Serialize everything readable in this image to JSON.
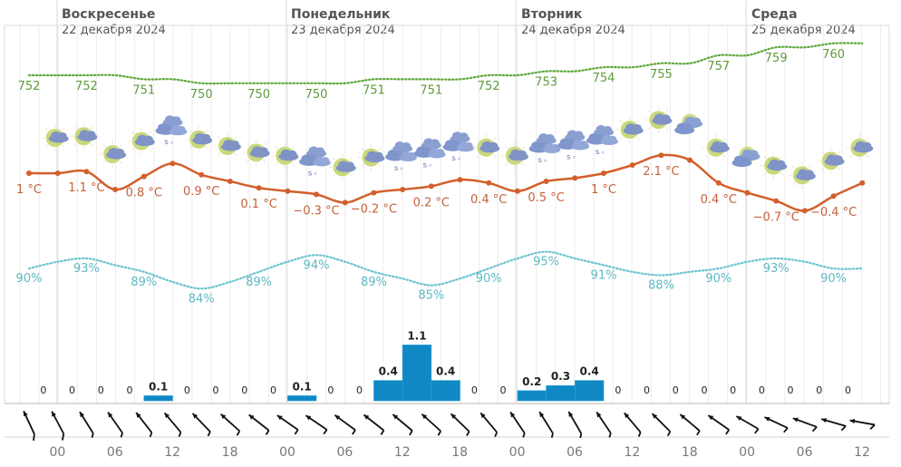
{
  "days": [
    {
      "name": "Воскресенье",
      "date": "22 декабря 2024"
    },
    {
      "name": "Понедельник",
      "date": "23 декабря 2024"
    },
    {
      "name": "Вторник",
      "date": "24 декабря 2024"
    },
    {
      "name": "Среда",
      "date": "25 декабря 2024"
    }
  ],
  "time_labels": [
    "00",
    "06",
    "12",
    "18",
    "00",
    "06",
    "12",
    "18",
    "00",
    "06",
    "12",
    "18",
    "00",
    "06",
    "12"
  ],
  "colors": {
    "temperature": "#d35f2b",
    "pressure": "#5ea83c",
    "humidity": "#6cc4cf",
    "precipitation": "#1088c4"
  },
  "chart_data": {
    "type": "line",
    "x_step_hours": 3,
    "temperature": {
      "unit": "°C",
      "values": [
        1,
        1,
        1.1,
        0,
        0.8,
        1.6,
        0.9,
        0.5,
        0.1,
        -0.1,
        -0.3,
        -0.8,
        -0.2,
        0,
        0.2,
        0.6,
        0.4,
        -0.1,
        0.5,
        0.7,
        1,
        1.5,
        2.1,
        1.8,
        0.4,
        -0.2,
        -0.7,
        -1.3,
        -0.4,
        0.4
      ],
      "labels": [
        "1 °C",
        "1.1 °C",
        "0.8 °C",
        "0.9 °C",
        "0.1 °C",
        "−0.3 °C",
        "−0.2 °C",
        "0.2 °C",
        "0.4 °C",
        "0.5 °C",
        "1 °C",
        "2.1 °C",
        "0.4 °C",
        "−0.7 °C",
        "−0.4 °C"
      ]
    },
    "pressure": {
      "values": [
        752,
        752,
        752,
        752,
        751,
        751,
        750,
        750,
        750,
        750,
        750,
        750,
        751,
        751,
        751,
        751,
        752,
        752,
        753,
        753,
        754,
        754,
        755,
        755,
        757,
        757,
        759,
        759,
        760,
        760
      ],
      "labels": [
        "752",
        "752",
        "751",
        "750",
        "750",
        "750",
        "751",
        "751",
        "752",
        "753",
        "754",
        "755",
        "757",
        "759",
        "760"
      ]
    },
    "humidity": {
      "values": [
        90,
        92,
        93,
        91,
        89,
        86,
        84,
        86,
        89,
        92,
        94,
        92,
        89,
        87,
        85,
        87,
        90,
        93,
        95,
        93,
        91,
        89,
        88,
        89,
        90,
        92,
        93,
        92,
        90,
        90
      ],
      "labels": [
        "90%",
        "93%",
        "89%",
        "84%",
        "89%",
        "94%",
        "89%",
        "85%",
        "90%",
        "95%",
        "91%",
        "88%",
        "90%",
        "93%",
        "90%"
      ]
    },
    "precipitation": {
      "values": [
        0,
        0,
        0,
        0,
        0.1,
        0,
        0,
        0,
        0,
        0.1,
        0,
        0,
        0.4,
        1.1,
        0.4,
        0,
        0,
        0.2,
        0.3,
        0.4,
        0,
        0,
        0,
        0,
        0,
        0,
        0,
        0,
        0
      ],
      "labels": [
        "0",
        "0",
        "0",
        "0",
        "0.1",
        "0",
        "0",
        "0",
        "0",
        "0.1",
        "0",
        "0",
        "0.4",
        "1.1",
        "0.4",
        "0",
        "0",
        "0.2",
        "0.3",
        "0.4",
        "0",
        "0",
        "0",
        "0",
        "0",
        "0",
        "0",
        "0",
        "0"
      ]
    },
    "weather_icons": [
      "partly-cloudy",
      "partly-cloudy",
      "partly-cloudy",
      "partly-cloudy",
      "rain",
      "partly-cloudy",
      "partly-cloudy",
      "partly-cloudy",
      "partly-cloudy",
      "rain",
      "partly-cloudy",
      "partly-cloudy",
      "rain",
      "rain",
      "rain",
      "partly-cloudy",
      "partly-cloudy",
      "rain",
      "rain",
      "rain",
      "partly-cloudy",
      "partly-cloudy",
      "cloudy",
      "partly-cloudy",
      "cloudy",
      "partly-cloudy",
      "partly-cloudy",
      "partly-cloudy",
      "partly-cloudy"
    ],
    "wind_from_deg": [
      155,
      152,
      148,
      145,
      142,
      140,
      136,
      132,
      128,
      125,
      124,
      126,
      128,
      130,
      132,
      134,
      140,
      146,
      148,
      150,
      146,
      140,
      135,
      130,
      125,
      120,
      115,
      110,
      106,
      100
    ]
  }
}
